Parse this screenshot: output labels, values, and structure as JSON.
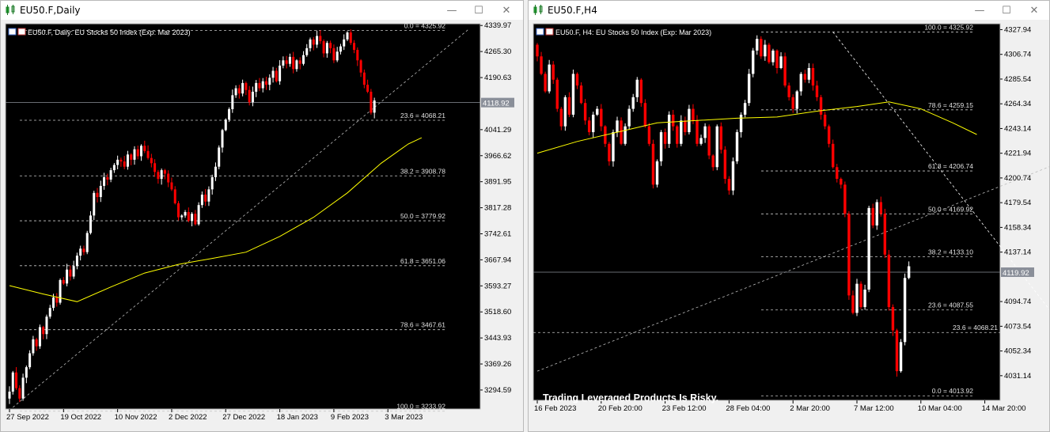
{
  "windows": [
    {
      "title": "EU50.F,Daily",
      "buttons": {
        "minimize": "—",
        "maximize": "☐",
        "close": "✕"
      }
    },
    {
      "title": "EU50.F,H4",
      "buttons": {
        "minimize": "—",
        "maximize": "☐",
        "close": "✕"
      }
    }
  ],
  "colors": {
    "bull": "#ffffff",
    "bear": "#ff0000",
    "ma": "#ffff00",
    "bg": "#000000",
    "grid": "#c0c0c0"
  },
  "chart_data": [
    {
      "type": "candlestick",
      "title": "EU50.F, Daily:  EU Stocks 50 Index (Exp: Mar 2023)",
      "current_price": "4118.92",
      "y_ticks": [
        "4339.97",
        "4265.30",
        "4190.63",
        "4041.29",
        "3966.62",
        "3891.95",
        "3817.28",
        "3742.61",
        "3667.94",
        "3593.27",
        "3518.60",
        "3443.93",
        "3369.26",
        "3294.59"
      ],
      "ylim": [
        3240,
        4345
      ],
      "x_ticks": [
        "27 Sep 2022",
        "19 Oct 2022",
        "10 Nov 2022",
        "2 Dec 2022",
        "27 Dec 2022",
        "18 Jan 2023",
        "9 Feb 2023",
        "3 Mar 2023"
      ],
      "x_tick_index": [
        0,
        16,
        32,
        48,
        64,
        80,
        96,
        112
      ],
      "fib_levels": [
        {
          "label": "0.0 = 4325.92",
          "value": 4325.92
        },
        {
          "label": "23.6 = 4068.21",
          "value": 4068.21
        },
        {
          "label": "38.2 = 3908.78",
          "value": 3908.78
        },
        {
          "label": "50.0 = 3779.92",
          "value": 3779.92
        },
        {
          "label": "61.8 = 3651.06",
          "value": 3651.06
        },
        {
          "label": "78.6 = 3467.61",
          "value": 3467.61
        },
        {
          "label": "100.0 = 3233.92",
          "value": 3233.92
        }
      ],
      "trendline": [
        [
          1,
          3245
        ],
        [
          136,
          4330
        ]
      ],
      "ma": [
        [
          0,
          3594
        ],
        [
          10,
          3570
        ],
        [
          20,
          3548
        ],
        [
          30,
          3590
        ],
        [
          40,
          3630
        ],
        [
          50,
          3655
        ],
        [
          60,
          3672
        ],
        [
          70,
          3690
        ],
        [
          80,
          3735
        ],
        [
          90,
          3790
        ],
        [
          100,
          3860
        ],
        [
          110,
          3945
        ],
        [
          118,
          4000
        ],
        [
          122,
          4018
        ]
      ],
      "closes": [
        3290,
        3345,
        3300,
        3270,
        3330,
        3360,
        3400,
        3440,
        3420,
        3475,
        3455,
        3505,
        3530,
        3560,
        3545,
        3610,
        3600,
        3640,
        3620,
        3650,
        3680,
        3700,
        3690,
        3745,
        3795,
        3860,
        3848,
        3880,
        3905,
        3898,
        3925,
        3940,
        3955,
        3950,
        3935,
        3970,
        3955,
        3985,
        3965,
        3995,
        3980,
        3960,
        3945,
        3920,
        3900,
        3925,
        3915,
        3890,
        3870,
        3830,
        3790,
        3795,
        3805,
        3780,
        3800,
        3770,
        3825,
        3855,
        3835,
        3870,
        3905,
        3935,
        3990,
        4040,
        4070,
        4100,
        4140,
        4160,
        4145,
        4175,
        4155,
        4120,
        4150,
        4175,
        4160,
        4180,
        4170,
        4190,
        4210,
        4180,
        4225,
        4240,
        4230,
        4250,
        4215,
        4240,
        4230,
        4255,
        4275,
        4300,
        4285,
        4310,
        4295,
        4260,
        4290,
        4275,
        4240,
        4265,
        4280,
        4300,
        4320,
        4290,
        4270,
        4240,
        4205,
        4170,
        4150,
        4090,
        4125
      ]
    },
    {
      "type": "candlestick",
      "title": "EU50.F, H4:  EU Stocks 50 Index (Exp: Mar 2023)",
      "current_price": "4119.92",
      "y_ticks": [
        "4327.94",
        "4306.74",
        "4285.54",
        "4264.34",
        "4243.14",
        "4221.94",
        "4200.74",
        "4179.54",
        "4158.34",
        "4137.14",
        "4094.74",
        "4073.54",
        "4052.34",
        "4031.14"
      ],
      "ylim": [
        4010,
        4333
      ],
      "x_ticks": [
        "16 Feb 2023",
        "20 Feb 20:00",
        "23 Feb 12:00",
        "28 Feb 04:00",
        "2 Mar 20:00",
        "7 Mar 12:00",
        "10 Mar 04:00",
        "14 Mar 20:00"
      ],
      "x_tick_index": [
        0,
        16,
        32,
        48,
        64,
        80,
        96,
        112
      ],
      "fib_levels": [
        {
          "label": "100.0 = 4325.92",
          "value": 4325.92
        },
        {
          "label": "78.6 = 4259.15",
          "value": 4259.15
        },
        {
          "label": "61.8 = 4206.74",
          "value": 4206.74
        },
        {
          "label": "50.0 = 4169.92",
          "value": 4169.92
        },
        {
          "label": "38.2 = 4133.10",
          "value": 4133.1
        },
        {
          "label": "23.6 = 4087.55",
          "value": 4087.55
        },
        {
          "label": "0.0 = 4013.92",
          "value": 4013.92
        }
      ],
      "extra_level": {
        "label": "23.6 = 4068.21",
        "value": 4068.21
      },
      "trendline": [
        [
          0,
          4035
        ],
        [
          152,
          4243
        ]
      ],
      "fib_diagonal": [
        [
          74,
          4325.92
        ],
        [
          145,
          4013.92
        ]
      ],
      "ma": [
        [
          0,
          4222
        ],
        [
          10,
          4232
        ],
        [
          20,
          4240
        ],
        [
          30,
          4248
        ],
        [
          40,
          4250
        ],
        [
          50,
          4252
        ],
        [
          60,
          4253
        ],
        [
          70,
          4258
        ],
        [
          80,
          4262
        ],
        [
          88,
          4266
        ],
        [
          96,
          4260
        ],
        [
          104,
          4248
        ],
        [
          110,
          4238
        ]
      ],
      "closes": [
        4305,
        4290,
        4275,
        4298,
        4285,
        4260,
        4245,
        4270,
        4255,
        4290,
        4280,
        4265,
        4250,
        4240,
        4255,
        4260,
        4245,
        4230,
        4215,
        4240,
        4250,
        4230,
        4245,
        4260,
        4270,
        4285,
        4265,
        4245,
        4230,
        4195,
        4215,
        4240,
        4230,
        4255,
        4245,
        4230,
        4250,
        4240,
        4260,
        4250,
        4230,
        4235,
        4245,
        4220,
        4210,
        4245,
        4225,
        4200,
        4190,
        4215,
        4240,
        4255,
        4265,
        4290,
        4310,
        4320,
        4305,
        4315,
        4300,
        4310,
        4295,
        4305,
        4280,
        4270,
        4260,
        4275,
        4290,
        4285,
        4295,
        4280,
        4270,
        4255,
        4245,
        4230,
        4210,
        4200,
        4195,
        4170,
        4100,
        4085,
        4110,
        4090,
        4105,
        4175,
        4160,
        4180,
        4170,
        4135,
        4090,
        4070,
        4035,
        4060,
        4115,
        4125
      ]
    }
  ],
  "disclaimer": "Trading Leveraged Products Is Risky."
}
